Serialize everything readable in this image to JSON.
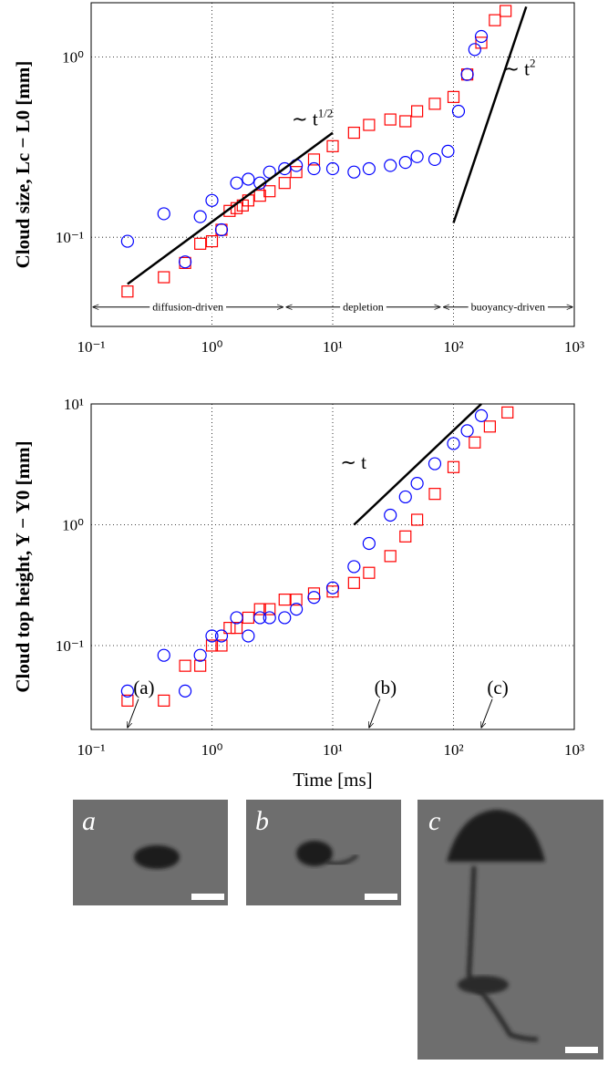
{
  "chart_data": [
    {
      "type": "scatter",
      "y_label": "Cloud size, Lc − L0 [mm]",
      "log_x": true,
      "log_y": true,
      "grid": true,
      "xlim": [
        0.1,
        1000
      ],
      "ylim": [
        0.032,
        2
      ],
      "xticks": [
        {
          "value": 0.1,
          "label": "10⁻¹"
        },
        {
          "value": 1,
          "label": "10⁰"
        },
        {
          "value": 10,
          "label": "10¹"
        },
        {
          "value": 100,
          "label": "10²"
        },
        {
          "value": 1000,
          "label": "10³"
        }
      ],
      "yticks": [
        {
          "value": 0.1,
          "label": "10⁻¹"
        },
        {
          "value": 1,
          "label": "10⁰"
        }
      ],
      "series": [
        {
          "color": "#ff0000",
          "marker": "square",
          "x": [
            0.2,
            0.4,
            0.6,
            0.8,
            1.0,
            1.2,
            1.4,
            1.6,
            1.8,
            2.0,
            2.5,
            3,
            4,
            5,
            7,
            10,
            15,
            20,
            30,
            40,
            50,
            70,
            100,
            130,
            170,
            220,
            270
          ],
          "values": [
            0.05,
            0.06,
            0.072,
            0.092,
            0.095,
            0.11,
            0.14,
            0.145,
            0.15,
            0.16,
            0.17,
            0.18,
            0.2,
            0.23,
            0.27,
            0.32,
            0.38,
            0.42,
            0.45,
            0.44,
            0.5,
            0.55,
            0.6,
            0.8,
            1.2,
            1.6,
            1.8
          ]
        },
        {
          "color": "#0000ff",
          "marker": "circle",
          "x": [
            0.2,
            0.4,
            0.6,
            0.8,
            1.0,
            1.2,
            1.6,
            2.0,
            2.5,
            3,
            4,
            5,
            7,
            10,
            15,
            20,
            30,
            40,
            50,
            70,
            90,
            110,
            130,
            150,
            170
          ],
          "values": [
            0.095,
            0.135,
            0.073,
            0.13,
            0.16,
            0.11,
            0.2,
            0.21,
            0.2,
            0.23,
            0.24,
            0.25,
            0.24,
            0.24,
            0.23,
            0.24,
            0.25,
            0.26,
            0.28,
            0.27,
            0.3,
            0.5,
            0.8,
            1.1,
            1.3
          ]
        }
      ],
      "reference_lines": [
        {
          "label": "∼ t",
          "exponent": "1/2",
          "x": [
            0.2,
            10
          ],
          "values": [
            0.055,
            0.38
          ]
        },
        {
          "label": "∼ t",
          "exponent": "2",
          "x": [
            100,
            400
          ],
          "values": [
            0.12,
            1.9
          ]
        }
      ],
      "regions": [
        {
          "label": "diffusion-driven",
          "x": [
            0.1,
            4
          ]
        },
        {
          "label": "depletion",
          "x": [
            4,
            80
          ]
        },
        {
          "label": "buoyancy-driven",
          "x": [
            80,
            1000
          ]
        }
      ],
      "region_y": 0.041
    },
    {
      "type": "scatter",
      "x_label": "Time [ms]",
      "y_label": "Cloud top height, Y − Y0 [mm]",
      "log_x": true,
      "log_y": true,
      "grid": true,
      "xlim": [
        0.1,
        1000
      ],
      "ylim": [
        0.0202,
        10
      ],
      "xticks": [
        {
          "value": 0.1,
          "label": "10⁻¹"
        },
        {
          "value": 1,
          "label": "10⁰"
        },
        {
          "value": 10,
          "label": "10¹"
        },
        {
          "value": 100,
          "label": "10²"
        },
        {
          "value": 1000,
          "label": "10³"
        }
      ],
      "yticks": [
        {
          "value": 0.1,
          "label": "10⁻¹"
        },
        {
          "value": 1,
          "label": "10⁰"
        },
        {
          "value": 10,
          "label": "10¹"
        }
      ],
      "series": [
        {
          "color": "#ff0000",
          "marker": "square",
          "x": [
            0.2,
            0.4,
            0.6,
            0.8,
            1.0,
            1.2,
            1.4,
            1.6,
            2,
            2.5,
            3,
            4,
            5,
            7,
            10,
            15,
            20,
            30,
            40,
            50,
            70,
            100,
            150,
            200,
            280
          ],
          "values": [
            0.035,
            0.035,
            0.068,
            0.068,
            0.1,
            0.1,
            0.14,
            0.14,
            0.17,
            0.2,
            0.2,
            0.24,
            0.24,
            0.27,
            0.28,
            0.33,
            0.4,
            0.55,
            0.8,
            1.1,
            1.8,
            3,
            4.8,
            6.5,
            8.5
          ]
        },
        {
          "color": "#0000ff",
          "marker": "circle",
          "x": [
            0.2,
            0.4,
            0.6,
            0.8,
            1.0,
            1.2,
            1.6,
            2,
            2.5,
            3,
            4,
            5,
            7,
            10,
            15,
            20,
            30,
            40,
            50,
            70,
            100,
            130,
            170
          ],
          "values": [
            0.042,
            0.083,
            0.042,
            0.083,
            0.12,
            0.12,
            0.17,
            0.12,
            0.17,
            0.17,
            0.17,
            0.2,
            0.25,
            0.3,
            0.45,
            0.7,
            1.2,
            1.7,
            2.2,
            3.2,
            4.7,
            6,
            8
          ]
        }
      ],
      "reference_lines": [
        {
          "label": "∼ t",
          "x": [
            15,
            170
          ],
          "values": [
            1.0,
            10
          ]
        }
      ],
      "annotations": [
        {
          "text": "(a)",
          "x": 0.2,
          "y": 0.036
        },
        {
          "text": "(b)",
          "x": 20,
          "y": 0.036
        },
        {
          "text": "(c)",
          "x": 170,
          "y": 0.036
        }
      ]
    }
  ],
  "panels": [
    "a",
    "b",
    "c"
  ]
}
